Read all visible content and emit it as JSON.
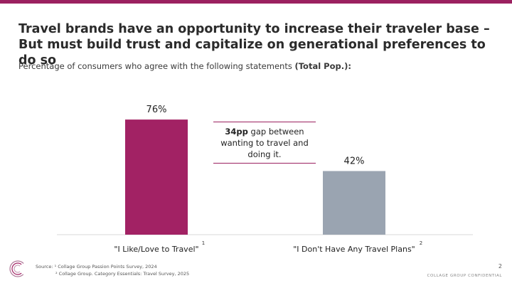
{
  "title": "Travel brands have an opportunity to increase their traveler base – But must build trust and capitalize on generational preferences to do so",
  "subtitle": {
    "text": "Percentage of consumers who agree with the following statements ",
    "emphasis": "(Total Pop.):"
  },
  "callout": {
    "bold": "34pp",
    "text": " gap between wanting to travel and doing it."
  },
  "chart_data": {
    "type": "bar",
    "categories": [
      "\"I Like/Love to Travel\"",
      "\"I Don't Have Any Travel Plans\""
    ],
    "category_superscripts": [
      "1",
      "2"
    ],
    "values": [
      76,
      42
    ],
    "data_labels": [
      "76%",
      "42%"
    ],
    "colors": [
      "#a22264",
      "#9aa4b1"
    ],
    "ylim": [
      0,
      100
    ],
    "grid": false,
    "title": "",
    "xlabel": "",
    "ylabel": ""
  },
  "footer": {
    "source_label": "Source:",
    "source_1": "¹ Collage Group Passion Points Survey, 2024",
    "source_2": "² Collage Group. Category Essentials: Travel Survey, 2025",
    "page_number": "2",
    "confidential": "COLLAGE GROUP CONFIDENTIAL"
  },
  "theme": {
    "accent": "#a22264",
    "top_bar": "#9b2160"
  }
}
